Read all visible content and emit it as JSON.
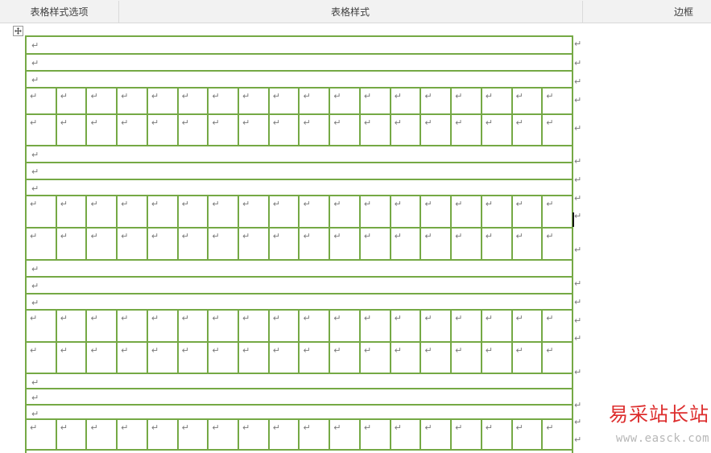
{
  "ribbon": {
    "groups": [
      {
        "label": "表格样式选项"
      },
      {
        "label": "表格样式"
      },
      {
        "label": "边框"
      }
    ]
  },
  "icons": {
    "move_handle": "four-way-arrow",
    "paragraph_mark": "↵"
  },
  "table": {
    "border_color": "#75a945",
    "mark_color": "#7a7a7a",
    "paragraph_mark": "↵",
    "columns": 18,
    "rows": [
      {
        "type": "full",
        "h": 24
      },
      {
        "type": "full",
        "h": 23
      },
      {
        "type": "full",
        "h": 23
      },
      {
        "type": "grid",
        "h": 35
      },
      {
        "type": "grid",
        "h": 41
      },
      {
        "type": "full",
        "h": 23
      },
      {
        "type": "full",
        "h": 23
      },
      {
        "type": "full",
        "h": 22
      },
      {
        "type": "grid",
        "h": 42
      },
      {
        "type": "grid",
        "h": 42
      },
      {
        "type": "full",
        "h": 23
      },
      {
        "type": "full",
        "h": 23
      },
      {
        "type": "full",
        "h": 22
      },
      {
        "type": "grid",
        "h": 42
      },
      {
        "type": "grid",
        "h": 41
      },
      {
        "type": "full",
        "h": 21
      },
      {
        "type": "full",
        "h": 22
      },
      {
        "type": "full",
        "h": 20
      },
      {
        "type": "grid",
        "h": 40
      }
    ],
    "caret_visible": true
  },
  "watermark": {
    "title": "易采站长站",
    "title_color": "#dd2e2e",
    "url": "www.easck.com",
    "url_color": "#b7b7b7"
  }
}
